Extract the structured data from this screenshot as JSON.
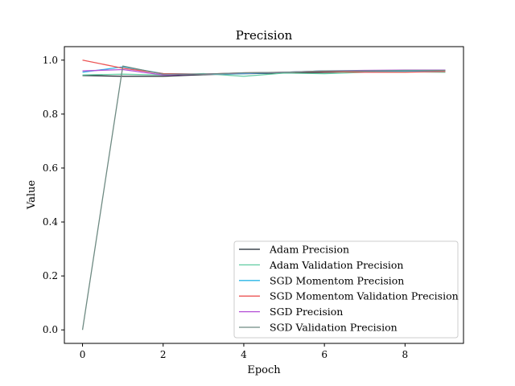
{
  "chart_data": {
    "type": "line",
    "title": "Precision",
    "xlabel": "Epoch",
    "ylabel": "Value",
    "xlim": [
      -0.45,
      9.45
    ],
    "ylim": [
      -0.05,
      1.05
    ],
    "xticks": [
      0,
      2,
      4,
      6,
      8
    ],
    "yticks": [
      0.0,
      0.2,
      0.4,
      0.6,
      0.8,
      1.0
    ],
    "x": [
      0,
      1,
      2,
      3,
      4,
      5,
      6,
      7,
      8,
      9
    ],
    "legend_position": "lower-right",
    "grid": false,
    "series": [
      {
        "name": "Adam Precision",
        "color": "#17202a",
        "values": [
          0.943,
          0.94,
          0.94,
          0.946,
          0.95,
          0.952,
          0.955,
          0.958,
          0.96,
          0.962
        ]
      },
      {
        "name": "Adam Validation Precision",
        "color": "#5fcaa0",
        "values": [
          0.945,
          0.948,
          0.945,
          0.95,
          0.94,
          0.952,
          0.95,
          0.955,
          0.957,
          0.955
        ]
      },
      {
        "name": "SGD Momentom Precision",
        "color": "#29b6e6",
        "values": [
          0.955,
          0.975,
          0.95,
          0.948,
          0.95,
          0.955,
          0.96,
          0.958,
          0.96,
          0.958
        ]
      },
      {
        "name": "SGD Momentom Validation Precision",
        "color": "#ec5454",
        "values": [
          1.0,
          0.97,
          0.95,
          0.948,
          0.953,
          0.955,
          0.958,
          0.955,
          0.955,
          0.958
        ]
      },
      {
        "name": "SGD Precision",
        "color": "#b44fd6",
        "values": [
          0.96,
          0.965,
          0.945,
          0.948,
          0.952,
          0.955,
          0.96,
          0.962,
          0.963,
          0.963
        ]
      },
      {
        "name": "SGD Validation Precision",
        "color": "#6e8a82",
        "values": [
          0.0,
          0.978,
          0.948,
          0.948,
          0.953,
          0.955,
          0.96,
          0.96,
          0.962,
          0.962
        ]
      }
    ]
  }
}
